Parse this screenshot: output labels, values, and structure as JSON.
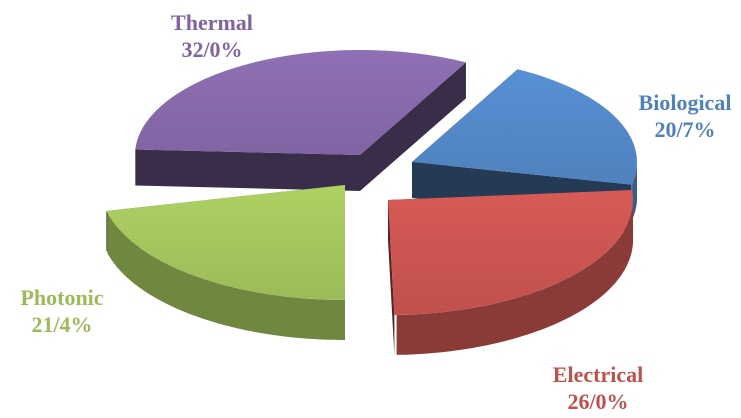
{
  "chart_data": {
    "type": "pie",
    "title": "",
    "slices": [
      {
        "label": "Thermal",
        "value_text": "32/0%",
        "value": 32.0,
        "color": "#8064A2"
      },
      {
        "label": "Biological",
        "value_text": "20/7%",
        "value": 20.7,
        "color": "#4F81BD"
      },
      {
        "label": "Electrical",
        "value_text": "26/0%",
        "value": 26.0,
        "color": "#C0504D"
      },
      {
        "label": "Photonic",
        "value_text": "21/4%",
        "value": 21.4,
        "color": "#9BBB59"
      }
    ],
    "style": "3d-exploded",
    "legend": "none"
  }
}
